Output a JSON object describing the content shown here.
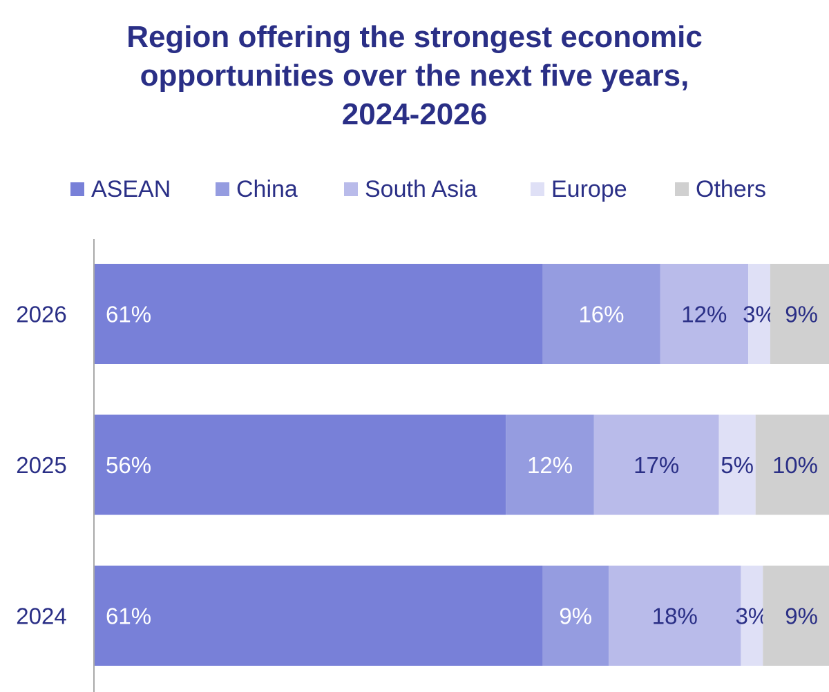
{
  "title_lines": [
    "Region offering the strongest economic",
    "opportunities over the next five years,",
    "2024-2026"
  ],
  "colors": {
    "title": "#2a2f86",
    "axis": "#a9a9a9",
    "label_light": "#ffffff",
    "label_dark": "#2a2f86"
  },
  "chart_data": {
    "type": "bar",
    "orientation": "horizontal",
    "stacked": true,
    "title": "Region offering the strongest economic opportunities over the next five years, 2024-2026",
    "categories": [
      "2026",
      "2025",
      "2024"
    ],
    "xlim": [
      0,
      100
    ],
    "grid": false,
    "legend_position": "top",
    "series": [
      {
        "name": "ASEAN",
        "color": "#7880d8",
        "label_color": "#ffffff",
        "values": [
          61,
          56,
          61
        ],
        "labels": [
          "61%",
          "56%",
          "61%"
        ]
      },
      {
        "name": "China",
        "color": "#959ce0",
        "label_color": "#ffffff",
        "values": [
          16,
          12,
          9
        ],
        "labels": [
          "16%",
          "12%",
          "9%"
        ]
      },
      {
        "name": "South Asia",
        "color": "#b9bbea",
        "label_color": "#2a2f86",
        "values": [
          12,
          17,
          18
        ],
        "labels": [
          "12%",
          "17%",
          "18%"
        ]
      },
      {
        "name": "Europe",
        "color": "#dfe0f6",
        "label_color": "#2a2f86",
        "values": [
          3,
          5,
          3
        ],
        "labels": [
          "3%",
          "5%",
          "3%"
        ]
      },
      {
        "name": "Others",
        "color": "#d0d0d0",
        "label_color": "#2a2f86",
        "values": [
          9,
          10,
          9
        ],
        "labels": [
          "9%",
          "10%",
          "9%"
        ]
      }
    ]
  }
}
